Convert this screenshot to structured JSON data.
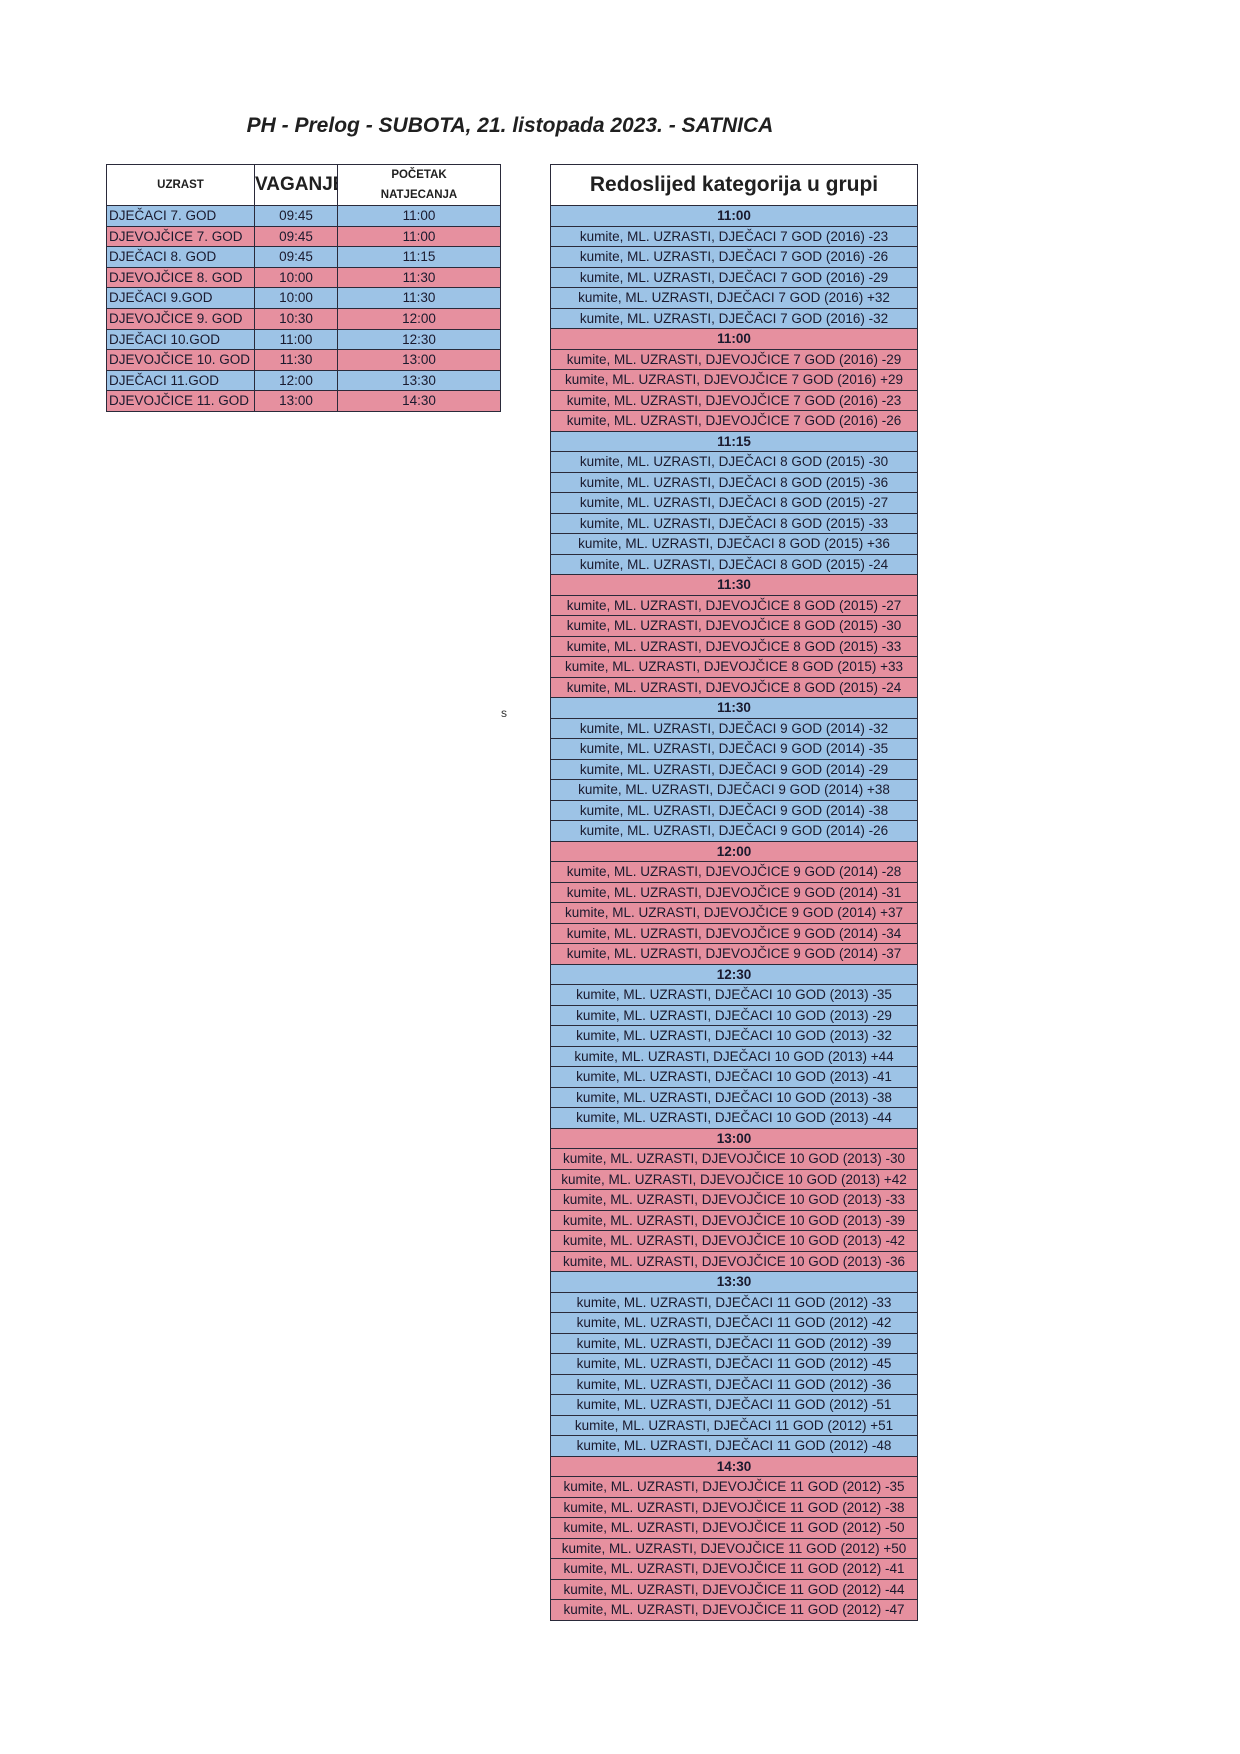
{
  "title": "PH - Prelog - SUBOTA, 21. listopada 2023. - SATNICA",
  "stray_mark": "s",
  "colors": {
    "boys": "#9dc3e6",
    "girls": "#e6909f"
  },
  "schedule": {
    "headers": {
      "age": "UZRAST",
      "weigh_in": "VAGANJE",
      "start_line1": "POČETAK",
      "start_line2": "NATJECANJA"
    },
    "rows": [
      {
        "age": "DJEČACI 7. GOD",
        "weigh_in": "09:45",
        "start": "11:00",
        "group": "boys"
      },
      {
        "age": "DJEVOJČICE 7. GOD",
        "weigh_in": "09:45",
        "start": "11:00",
        "group": "girls"
      },
      {
        "age": "DJEČACI 8. GOD",
        "weigh_in": "09:45",
        "start": "11:15",
        "group": "boys"
      },
      {
        "age": "DJEVOJČICE 8. GOD",
        "weigh_in": "10:00",
        "start": "11:30",
        "group": "girls"
      },
      {
        "age": "DJEČACI 9.GOD",
        "weigh_in": "10:00",
        "start": "11:30",
        "group": "boys"
      },
      {
        "age": "DJEVOJČICE 9. GOD",
        "weigh_in": "10:30",
        "start": "12:00",
        "group": "girls"
      },
      {
        "age": "DJEČACI 10.GOD",
        "weigh_in": "11:00",
        "start": "12:30",
        "group": "boys"
      },
      {
        "age": "DJEVOJČICE 10. GOD",
        "weigh_in": "11:30",
        "start": "13:00",
        "group": "girls"
      },
      {
        "age": "DJEČACI 11.GOD",
        "weigh_in": "12:00",
        "start": "13:30",
        "group": "boys"
      },
      {
        "age": "DJEVOJČICE 11. GOD",
        "weigh_in": "13:00",
        "start": "14:30",
        "group": "girls"
      }
    ]
  },
  "categories": {
    "header": "Redoslijed kategorija u grupi",
    "groups": [
      {
        "time": "11:00",
        "group": "boys",
        "items": [
          "kumite, ML. UZRASTI, DJEČACI 7 GOD (2016) -23",
          "kumite, ML. UZRASTI, DJEČACI 7 GOD (2016) -26",
          "kumite, ML. UZRASTI, DJEČACI 7 GOD (2016) -29",
          "kumite, ML. UZRASTI, DJEČACI 7 GOD (2016) +32",
          "kumite, ML. UZRASTI, DJEČACI 7 GOD (2016) -32"
        ]
      },
      {
        "time": "11:00",
        "group": "girls",
        "items": [
          "kumite, ML. UZRASTI, DJEVOJČICE 7 GOD (2016) -29",
          "kumite, ML. UZRASTI, DJEVOJČICE 7 GOD (2016) +29",
          "kumite, ML. UZRASTI, DJEVOJČICE 7 GOD (2016) -23",
          "kumite, ML. UZRASTI, DJEVOJČICE 7 GOD (2016) -26"
        ]
      },
      {
        "time": "11:15",
        "group": "boys",
        "items": [
          "kumite, ML. UZRASTI, DJEČACI 8 GOD (2015) -30",
          "kumite, ML. UZRASTI, DJEČACI 8 GOD (2015) -36",
          "kumite, ML. UZRASTI, DJEČACI 8 GOD (2015) -27",
          "kumite, ML. UZRASTI, DJEČACI 8 GOD (2015) -33",
          "kumite, ML. UZRASTI, DJEČACI 8 GOD (2015) +36",
          "kumite, ML. UZRASTI, DJEČACI 8 GOD (2015) -24"
        ]
      },
      {
        "time": "11:30",
        "group": "girls",
        "items": [
          "kumite, ML. UZRASTI, DJEVOJČICE 8 GOD (2015) -27",
          "kumite, ML. UZRASTI, DJEVOJČICE 8 GOD (2015) -30",
          "kumite, ML. UZRASTI, DJEVOJČICE 8 GOD (2015) -33",
          "kumite, ML. UZRASTI, DJEVOJČICE 8 GOD (2015) +33",
          "kumite, ML. UZRASTI, DJEVOJČICE 8 GOD (2015) -24"
        ]
      },
      {
        "time": "11:30",
        "group": "boys",
        "items": [
          "kumite, ML. UZRASTI, DJEČACI 9 GOD (2014) -32",
          "kumite, ML. UZRASTI, DJEČACI 9 GOD (2014) -35",
          "kumite, ML. UZRASTI, DJEČACI 9 GOD (2014) -29",
          "kumite, ML. UZRASTI, DJEČACI 9 GOD (2014) +38",
          "kumite, ML. UZRASTI, DJEČACI 9 GOD (2014) -38",
          "kumite, ML. UZRASTI, DJEČACI 9 GOD (2014) -26"
        ]
      },
      {
        "time": "12:00",
        "group": "girls",
        "items": [
          "kumite, ML. UZRASTI, DJEVOJČICE 9 GOD (2014) -28",
          "kumite, ML. UZRASTI, DJEVOJČICE 9 GOD (2014) -31",
          "kumite, ML. UZRASTI, DJEVOJČICE 9 GOD (2014) +37",
          "kumite, ML. UZRASTI, DJEVOJČICE 9 GOD (2014) -34",
          "kumite, ML. UZRASTI, DJEVOJČICE 9 GOD (2014) -37"
        ]
      },
      {
        "time": "12:30",
        "group": "boys",
        "items": [
          "kumite, ML. UZRASTI, DJEČACI 10 GOD (2013) -35",
          "kumite, ML. UZRASTI, DJEČACI 10 GOD (2013) -29",
          "kumite, ML. UZRASTI, DJEČACI 10 GOD (2013) -32",
          "kumite, ML. UZRASTI, DJEČACI 10 GOD (2013) +44",
          "kumite, ML. UZRASTI, DJEČACI 10 GOD (2013) -41",
          "kumite, ML. UZRASTI, DJEČACI 10 GOD (2013) -38",
          "kumite, ML. UZRASTI, DJEČACI 10 GOD (2013) -44"
        ]
      },
      {
        "time": "13:00",
        "group": "girls",
        "items": [
          "kumite, ML. UZRASTI, DJEVOJČICE 10 GOD (2013) -30",
          "kumite, ML. UZRASTI, DJEVOJČICE 10 GOD (2013) +42",
          "kumite, ML. UZRASTI, DJEVOJČICE 10 GOD (2013) -33",
          "kumite, ML. UZRASTI, DJEVOJČICE 10 GOD (2013) -39",
          "kumite, ML. UZRASTI, DJEVOJČICE 10 GOD (2013) -42",
          "kumite, ML. UZRASTI, DJEVOJČICE 10 GOD (2013) -36"
        ]
      },
      {
        "time": "13:30",
        "group": "boys",
        "items": [
          "kumite, ML. UZRASTI, DJEČACI 11 GOD (2012) -33",
          "kumite, ML. UZRASTI, DJEČACI 11 GOD (2012) -42",
          "kumite, ML. UZRASTI, DJEČACI 11 GOD (2012) -39",
          "kumite, ML. UZRASTI, DJEČACI 11 GOD (2012) -45",
          "kumite, ML. UZRASTI, DJEČACI 11 GOD (2012) -36",
          "kumite, ML. UZRASTI, DJEČACI 11 GOD (2012) -51",
          "kumite, ML. UZRASTI, DJEČACI 11 GOD (2012) +51",
          "kumite, ML. UZRASTI, DJEČACI 11 GOD (2012) -48"
        ]
      },
      {
        "time": "14:30",
        "group": "girls",
        "items": [
          "kumite, ML. UZRASTI, DJEVOJČICE 11 GOD (2012) -35",
          "kumite, ML. UZRASTI, DJEVOJČICE 11 GOD (2012) -38",
          "kumite, ML. UZRASTI, DJEVOJČICE 11 GOD (2012) -50",
          "kumite, ML. UZRASTI, DJEVOJČICE 11 GOD (2012) +50",
          "kumite, ML. UZRASTI, DJEVOJČICE 11 GOD (2012) -41",
          "kumite, ML. UZRASTI, DJEVOJČICE 11 GOD (2012) -44",
          "kumite, ML. UZRASTI, DJEVOJČICE 11 GOD (2012) -47"
        ]
      }
    ]
  }
}
